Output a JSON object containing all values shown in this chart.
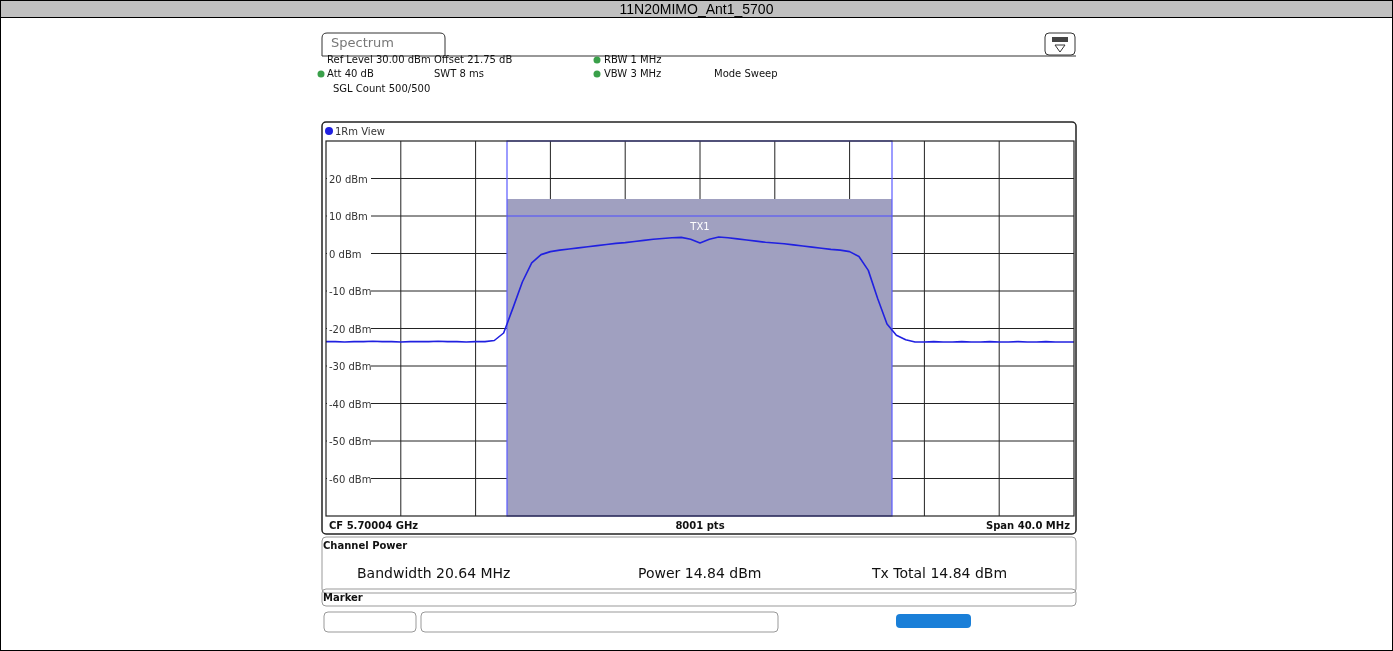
{
  "chart_data": {
    "type": "line",
    "title": "11N20MIMO_Ant1_5700",
    "categories": [
      null,
      null,
      null,
      null,
      null,
      null,
      null,
      null,
      null,
      null,
      null,
      null,
      null,
      null,
      null,
      null,
      null,
      null,
      null,
      null,
      null,
      null,
      null,
      null,
      null,
      null,
      null,
      null,
      null,
      null,
      null,
      null,
      null,
      null,
      null,
      null,
      null,
      null,
      null,
      null,
      null,
      null,
      null,
      null,
      null,
      null,
      null,
      null,
      null,
      null,
      null,
      null,
      null,
      null,
      null,
      null,
      null,
      null,
      null,
      null,
      null,
      null,
      null,
      null,
      null,
      null,
      null,
      null,
      null,
      null,
      null,
      null,
      null,
      null,
      null,
      null,
      null,
      null,
      null,
      null,
      null
    ],
    "series": [
      {
        "name": "1Rm View",
        "color": "#2020e0",
        "values": [
          -23.5,
          -23.5,
          -23.6,
          -23.5,
          -23.5,
          -23.4,
          -23.5,
          -23.5,
          -23.6,
          -23.5,
          -23.5,
          -23.5,
          -23.4,
          -23.5,
          -23.5,
          -23.6,
          -23.5,
          -23.5,
          -23.2,
          -21.2,
          -14.5,
          -7.6,
          -2.5,
          -0.3,
          0.5,
          0.9,
          1.2,
          1.5,
          1.8,
          2.1,
          2.4,
          2.7,
          2.9,
          3.2,
          3.5,
          3.8,
          4.0,
          4.2,
          4.3,
          3.8,
          2.8,
          3.8,
          4.4,
          4.2,
          3.9,
          3.6,
          3.3,
          3.0,
          2.8,
          2.6,
          2.3,
          2.0,
          1.7,
          1.4,
          1.1,
          0.9,
          0.5,
          -0.8,
          -4.5,
          -12,
          -18.8,
          -21.8,
          -23,
          -23.6,
          -23.6,
          -23.5,
          -23.6,
          -23.6,
          -23.5,
          -23.6,
          -23.6,
          -23.5,
          -23.6,
          -23.6,
          -23.5,
          -23.6,
          -23.6,
          -23.5,
          -23.6,
          -23.6,
          -23.6
        ]
      }
    ],
    "ylim": [
      -70,
      30
    ],
    "yticks": [
      {
        "value": -60,
        "label": "-60 dBm"
      },
      {
        "value": -50,
        "label": "-50 dBm"
      },
      {
        "value": -40,
        "label": "-40 dBm"
      },
      {
        "value": -30,
        "label": "-30 dBm"
      },
      {
        "value": -20,
        "label": "-20 dBm"
      },
      {
        "value": -10,
        "label": "-10 dBm"
      },
      {
        "value": 0,
        "label": "0 dBm"
      },
      {
        "value": 10,
        "label": "10 dBm"
      },
      {
        "value": 20,
        "label": "20 dBm"
      }
    ],
    "tick_labels": "y",
    "grid": true,
    "legend": "top left",
    "ref_lines": [
      {
        "axis": "y",
        "value": 10,
        "color": "#4a4aff"
      }
    ],
    "annotations": [
      "Spectrum",
      "Ref Level 30.00 dBm",
      "Offset 21.75 dB",
      "RBW 1 MHz",
      "Att 40 dB",
      "SWT 8 ms",
      "VBW 3 MHz",
      "Mode Sweep",
      "SGL Count 500/500",
      "CF 5.70004 GHz",
      "8001 pts",
      "Span 40.0 MHz",
      "Channel Power",
      "Bandwidth 20.64 MHz",
      "Power 14.84 dBm",
      "Tx Total 14.84 dBm",
      "Marker",
      "TX1"
    ]
  }
}
